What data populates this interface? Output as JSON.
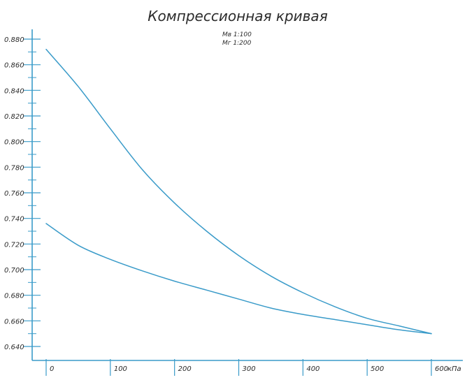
{
  "chart_data": {
    "type": "line",
    "title": "Компрессионная кривая",
    "subtitle_lines": [
      "Мв 1:100",
      "Мг 1:200"
    ],
    "x_unit": "кПа",
    "xlim": [
      0,
      600
    ],
    "ylim": [
      0.64,
      0.88
    ],
    "x_ticks": [
      0,
      100,
      200,
      300,
      400,
      500,
      600
    ],
    "x_tick_labels": [
      "0",
      "100",
      "200",
      "300",
      "400",
      "500",
      "600"
    ],
    "y_ticks": [
      0.64,
      0.66,
      0.68,
      0.7,
      0.72,
      0.74,
      0.76,
      0.78,
      0.8,
      0.82,
      0.84,
      0.86,
      0.88
    ],
    "y_tick_labels": [
      "0.640",
      "0.660",
      "0.680",
      "0.700",
      "0.720",
      "0.740",
      "0.760",
      "0.780",
      "0.800",
      "0.820",
      "0.840",
      "0.860",
      "0.880"
    ],
    "grid": false,
    "series": [
      {
        "x": [
          0,
          50,
          100,
          150,
          200,
          250,
          300,
          350,
          400,
          450,
          500,
          550,
          600
        ],
        "values": [
          0.872,
          0.843,
          0.81,
          0.778,
          0.752,
          0.73,
          0.711,
          0.695,
          0.682,
          0.671,
          0.662,
          0.656,
          0.65
        ],
        "color": "#3a9bc9"
      },
      {
        "x": [
          0,
          50,
          100,
          150,
          200,
          250,
          300,
          350,
          400,
          450,
          500,
          550,
          600
        ],
        "values": [
          0.736,
          0.719,
          0.708,
          0.699,
          0.691,
          0.684,
          0.677,
          0.67,
          0.665,
          0.661,
          0.657,
          0.653,
          0.65
        ],
        "color": "#3a9bc9"
      }
    ]
  }
}
